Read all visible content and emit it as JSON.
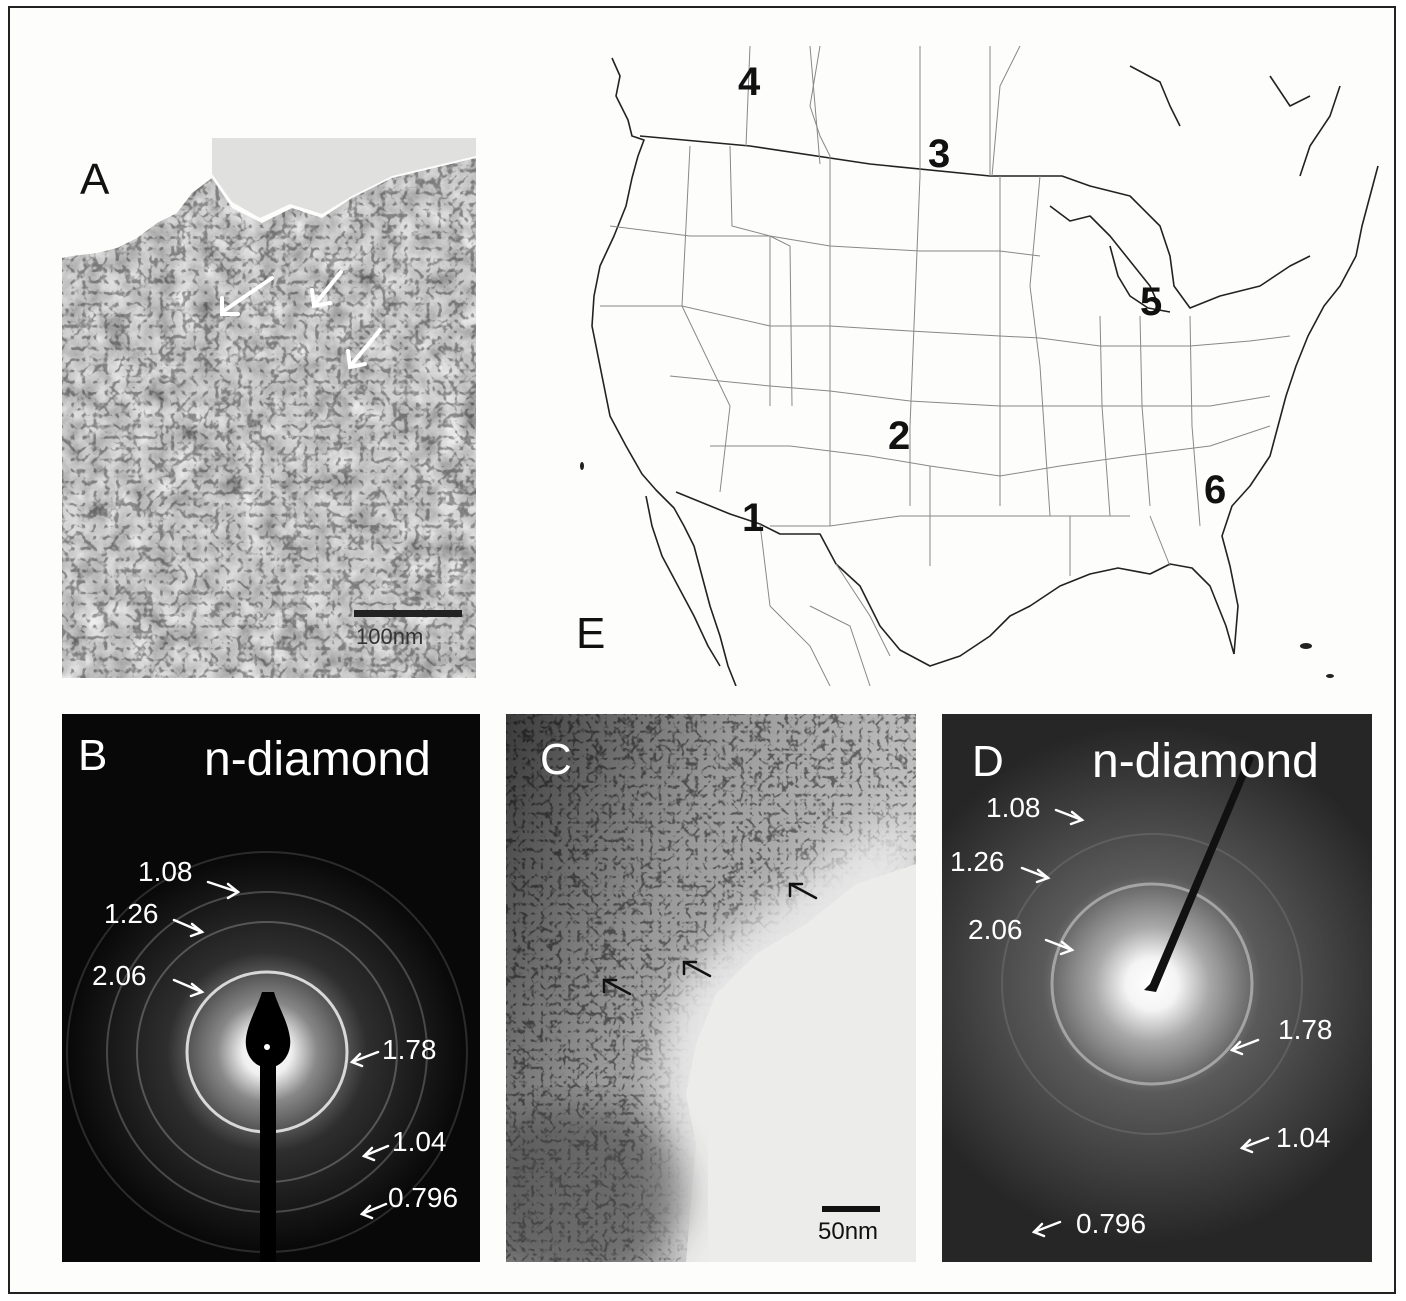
{
  "figure": {
    "panels": {
      "a": {
        "letter": "A",
        "scale_label": "100nm"
      },
      "b": {
        "letter": "B",
        "title": "n-diamond",
        "d_spacings": [
          "1.08",
          "1.26",
          "2.06",
          "1.78",
          "1.04",
          "0.796"
        ]
      },
      "c": {
        "letter": "C",
        "scale_label": "50nm"
      },
      "d": {
        "letter": "D",
        "title": "n-diamond",
        "d_spacings": [
          "1.08",
          "1.26",
          "2.06",
          "1.78",
          "1.04",
          "0.796"
        ]
      },
      "e": {
        "letter": "E",
        "sites": [
          "1",
          "2",
          "3",
          "4",
          "5",
          "6"
        ]
      }
    }
  }
}
